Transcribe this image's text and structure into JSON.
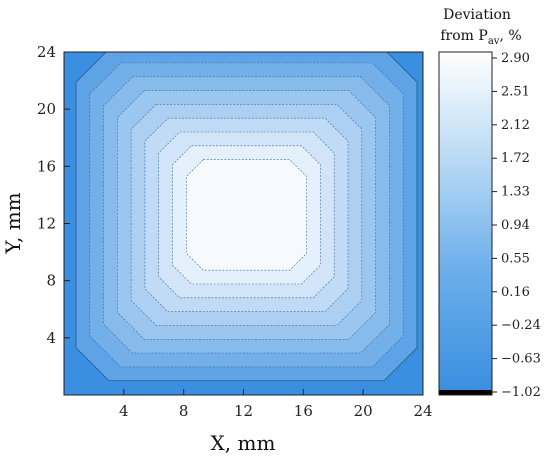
{
  "chart_data": {
    "type": "heatmap",
    "title": "",
    "xlabel": "X, mm",
    "ylabel": "Y, mm",
    "xlim": [
      0,
      24
    ],
    "ylim": [
      0,
      24
    ],
    "x_ticks": [
      "4",
      "8",
      "12",
      "16",
      "20",
      "24"
    ],
    "y_ticks": [
      "4",
      "8",
      "12",
      "16",
      "20",
      "24"
    ],
    "colorbar": {
      "title_line1": "Deviation",
      "title_line2_prefix": "from P",
      "title_line2_sub": "av",
      "title_line2_suffix": ", %",
      "ticks": [
        "2.90",
        "2.51",
        "2.12",
        "1.72",
        "1.33",
        "0.94",
        "0.55",
        "0.16",
        "−0.24",
        "−0.63",
        "−1.02"
      ],
      "min": -1.02,
      "max": 2.9,
      "low_color": "#3a8fe0",
      "high_color": "#ffffff",
      "bottom_color": "#000000"
    },
    "contour_levels": [
      -0.63,
      -0.24,
      0.16,
      0.55,
      0.94,
      1.33,
      1.72,
      2.12,
      2.51
    ],
    "field": {
      "center_x": 12.2,
      "center_y": 12.6,
      "peak_value": 2.9,
      "edge_value": -0.63
    }
  }
}
